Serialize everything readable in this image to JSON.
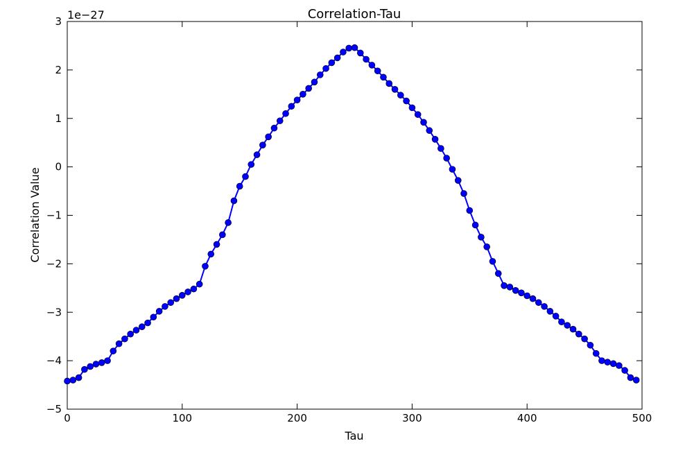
{
  "chart_data": {
    "type": "line",
    "title": "Correlation-Tau",
    "x_label": "Tau",
    "y_label": "Correlation Value",
    "y_offset_label": "1e−27",
    "color": "#0000ff",
    "marker": "circle",
    "x": [
      0,
      5,
      10,
      15,
      20,
      25,
      30,
      35,
      40,
      45,
      50,
      55,
      60,
      65,
      70,
      75,
      80,
      85,
      90,
      95,
      100,
      105,
      110,
      115,
      120,
      125,
      130,
      135,
      140,
      145,
      150,
      155,
      160,
      165,
      170,
      175,
      180,
      185,
      190,
      195,
      200,
      205,
      210,
      215,
      220,
      225,
      230,
      235,
      240,
      245,
      250,
      255,
      260,
      265,
      270,
      275,
      280,
      285,
      290,
      295,
      300,
      305,
      310,
      315,
      320,
      325,
      330,
      335,
      340,
      345,
      350,
      355,
      360,
      365,
      370,
      375,
      380,
      385,
      390,
      395,
      400,
      405,
      410,
      415,
      420,
      425,
      430,
      435,
      440,
      445,
      450,
      455,
      460,
      465,
      470,
      475,
      480,
      485,
      490,
      495
    ],
    "values": [
      -4.42,
      -4.4,
      -4.35,
      -4.18,
      -4.12,
      -4.07,
      -4.04,
      -4.0,
      -3.8,
      -3.65,
      -3.55,
      -3.45,
      -3.37,
      -3.3,
      -3.22,
      -3.1,
      -2.98,
      -2.88,
      -2.8,
      -2.72,
      -2.65,
      -2.58,
      -2.52,
      -2.42,
      -2.05,
      -1.8,
      -1.6,
      -1.4,
      -1.15,
      -0.7,
      -0.4,
      -0.2,
      0.05,
      0.25,
      0.45,
      0.62,
      0.8,
      0.95,
      1.1,
      1.25,
      1.38,
      1.5,
      1.62,
      1.75,
      1.9,
      2.03,
      2.15,
      2.25,
      2.37,
      2.45,
      2.46,
      2.35,
      2.22,
      2.1,
      1.98,
      1.85,
      1.72,
      1.6,
      1.48,
      1.36,
      1.22,
      1.08,
      0.92,
      0.75,
      0.57,
      0.38,
      0.18,
      -0.05,
      -0.28,
      -0.55,
      -0.9,
      -1.2,
      -1.45,
      -1.65,
      -1.95,
      -2.2,
      -2.45,
      -2.48,
      -2.55,
      -2.6,
      -2.66,
      -2.72,
      -2.8,
      -2.88,
      -2.98,
      -3.08,
      -3.2,
      -3.27,
      -3.35,
      -3.45,
      -3.55,
      -3.68,
      -3.85,
      -4.0,
      -4.03,
      -4.06,
      -4.1,
      -4.2,
      -4.35,
      -4.4
    ],
    "xlim": [
      0,
      500
    ],
    "xticks": [
      0,
      100,
      200,
      300,
      400,
      500
    ],
    "ylim": [
      -5,
      3
    ],
    "yticks": [
      {
        "value": -5,
        "label": "−5"
      },
      {
        "value": -4,
        "label": "−4"
      },
      {
        "value": -3,
        "label": "−3"
      },
      {
        "value": -2,
        "label": "−2"
      },
      {
        "value": -1,
        "label": "−1"
      },
      0,
      1,
      2,
      3
    ],
    "grid": false
  }
}
